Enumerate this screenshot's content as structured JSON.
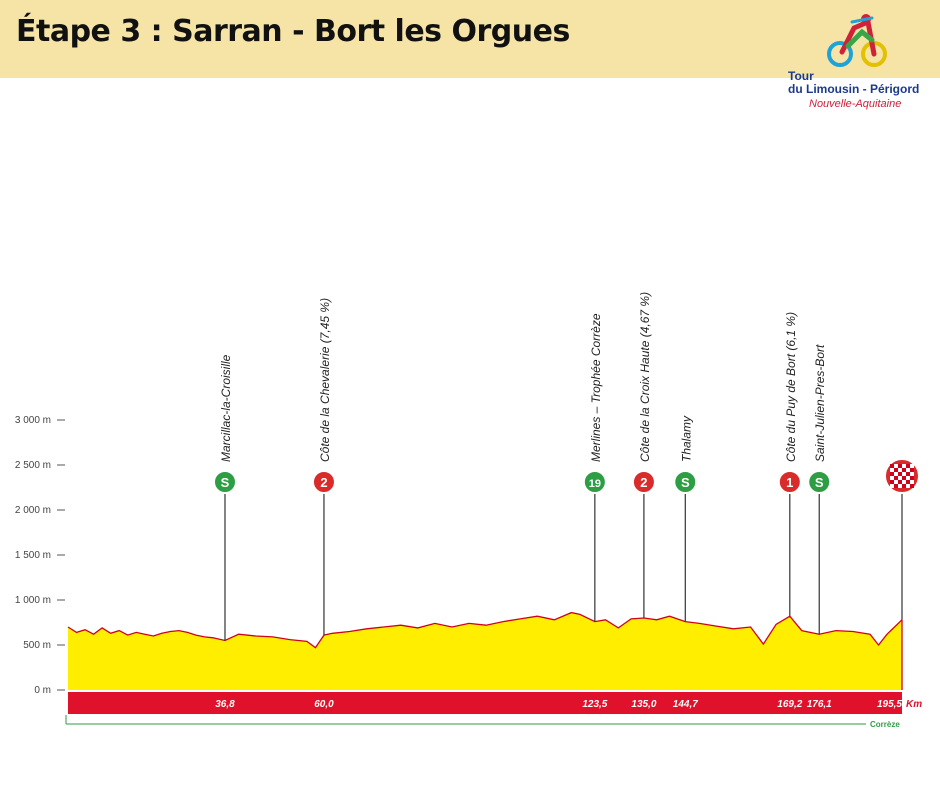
{
  "header": {
    "title": "Étape 3 : Sarran - Bort les Orgues",
    "logo": {
      "line1": "Tour",
      "line2": "du Limousin - Périgord",
      "line3": "Nouvelle-Aquitaine"
    }
  },
  "chart_data": {
    "type": "area",
    "y_ticks": [
      {
        "value": 0,
        "label": "0 m"
      },
      {
        "value": 500,
        "label": "500 m"
      },
      {
        "value": 1000,
        "label": "1 000 m"
      },
      {
        "value": 1500,
        "label": "1 500 m"
      },
      {
        "value": 2000,
        "label": "2 000 m"
      },
      {
        "value": 2500,
        "label": "2 500 m"
      },
      {
        "value": 3000,
        "label": "3 000 m"
      }
    ],
    "ylim": [
      0,
      3000
    ],
    "xlim": [
      0,
      195.5
    ],
    "unit": "Km",
    "department": "Corrèze",
    "profile": {
      "km": [
        0,
        2,
        4,
        6,
        8,
        10,
        12,
        14,
        16,
        18,
        20,
        22,
        24,
        26,
        28,
        30,
        32,
        34,
        36.8,
        40,
        44,
        48,
        52,
        56,
        58,
        60,
        62,
        66,
        70,
        74,
        78,
        82,
        86,
        90,
        94,
        98,
        102,
        106,
        110,
        114,
        118,
        120,
        123.5,
        126,
        129,
        132,
        135,
        138,
        141,
        144.7,
        148,
        152,
        156,
        160,
        163,
        166,
        169.2,
        172,
        176.1,
        180,
        184,
        188,
        190,
        192,
        195.5
      ],
      "elevation": [
        700,
        640,
        670,
        620,
        690,
        630,
        660,
        610,
        640,
        620,
        600,
        630,
        650,
        660,
        640,
        610,
        590,
        580,
        550,
        620,
        600,
        590,
        560,
        540,
        470,
        610,
        630,
        650,
        680,
        700,
        720,
        690,
        740,
        700,
        740,
        720,
        760,
        790,
        820,
        780,
        860,
        840,
        760,
        780,
        690,
        790,
        800,
        780,
        820,
        760,
        740,
        710,
        680,
        700,
        510,
        730,
        820,
        660,
        620,
        660,
        650,
        620,
        500,
        620,
        780
      ],
      "fill_color": "#ffee00",
      "line_color": "#d0021b"
    },
    "waypoints": [
      {
        "name": "Marcillac-la-Croisille",
        "km": 36.8,
        "km_label": "36,8",
        "marker": "S",
        "color": "#2e9e45"
      },
      {
        "name": "Côte de la Chevalerie (7,45 %)",
        "km": 60.0,
        "km_label": "60,0",
        "marker": "2",
        "color": "#d92b2b"
      },
      {
        "name": "Merlines – Trophée Corrèze",
        "km": 123.5,
        "km_label": "123,5",
        "marker": "19",
        "color": "#2e9e45"
      },
      {
        "name": "Côte de la Croix Haute (4,67 %)",
        "km": 135.0,
        "km_label": "135,0",
        "marker": "2",
        "color": "#d92b2b"
      },
      {
        "name": "Thalamy",
        "km": 144.7,
        "km_label": "144,7",
        "marker": "S",
        "color": "#2e9e45"
      },
      {
        "name": "Côte du Puy de Bort (6,1 %)",
        "km": 169.2,
        "km_label": "169,2",
        "marker": "1",
        "color": "#d92b2b"
      },
      {
        "name": "Saint-Julien-Pres-Bort",
        "km": 176.1,
        "km_label": "176,1",
        "marker": "S",
        "color": "#2e9e45"
      },
      {
        "name": "",
        "km": 195.5,
        "km_label": "195,5",
        "marker": "finish",
        "color": "#d92b2b"
      }
    ],
    "colors": {
      "km_bar": "#e0112b",
      "axis_text": "#444444",
      "department_line": "#2e9e45"
    }
  }
}
